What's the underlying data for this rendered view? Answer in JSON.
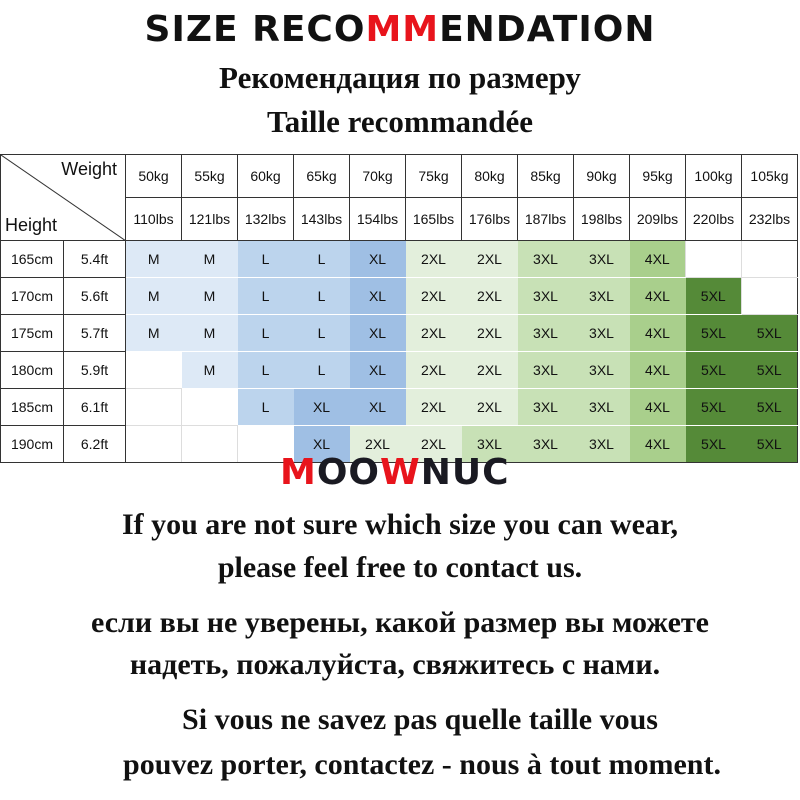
{
  "header": {
    "title_parts": [
      "SIZE RECO",
      "MM",
      "ENDATION"
    ],
    "subtitle_ru": "Рекомендация по размеру",
    "subtitle_fr": "Taille recommandée"
  },
  "colors": {
    "accent_red": "#e8141c",
    "M": "#dde9f6",
    "L": "#bcd4ed",
    "XL": "#9fbfe4",
    "2XL": "#e3efdc",
    "3XL": "#c8e1b6",
    "4XL": "#a9cf8c",
    "5XL": "#558a38"
  },
  "table": {
    "corner_weight": "Weight",
    "corner_height": "Height",
    "weights_kg": [
      "50kg",
      "55kg",
      "60kg",
      "65kg",
      "70kg",
      "75kg",
      "80kg",
      "85kg",
      "90kg",
      "95kg",
      "100kg",
      "105kg"
    ],
    "weights_lbs": [
      "110lbs",
      "121lbs",
      "132lbs",
      "143lbs",
      "154lbs",
      "165lbs",
      "176lbs",
      "187lbs",
      "198lbs",
      "209lbs",
      "220lbs",
      "232lbs"
    ],
    "rows": [
      {
        "cm": "165cm",
        "ft": "5.4ft",
        "sizes": [
          "M",
          "M",
          "L",
          "L",
          "XL",
          "2XL",
          "2XL",
          "3XL",
          "3XL",
          "4XL",
          "",
          ""
        ]
      },
      {
        "cm": "170cm",
        "ft": "5.6ft",
        "sizes": [
          "M",
          "M",
          "L",
          "L",
          "XL",
          "2XL",
          "2XL",
          "3XL",
          "3XL",
          "4XL",
          "5XL",
          ""
        ]
      },
      {
        "cm": "175cm",
        "ft": "5.7ft",
        "sizes": [
          "M",
          "M",
          "L",
          "L",
          "XL",
          "2XL",
          "2XL",
          "3XL",
          "3XL",
          "4XL",
          "5XL",
          "5XL"
        ]
      },
      {
        "cm": "180cm",
        "ft": "5.9ft",
        "sizes": [
          "",
          "M",
          "L",
          "L",
          "XL",
          "2XL",
          "2XL",
          "3XL",
          "3XL",
          "4XL",
          "5XL",
          "5XL"
        ]
      },
      {
        "cm": "185cm",
        "ft": "6.1ft",
        "sizes": [
          "",
          "",
          "L",
          "XL",
          "XL",
          "2XL",
          "2XL",
          "3XL",
          "3XL",
          "4XL",
          "5XL",
          "5XL"
        ]
      },
      {
        "cm": "190cm",
        "ft": "6.2ft",
        "sizes": [
          "",
          "",
          "",
          "XL",
          "2XL",
          "2XL",
          "3XL",
          "3XL",
          "3XL",
          "4XL",
          "5XL",
          "5XL"
        ]
      }
    ]
  },
  "logo": {
    "text": "MOOWNUC"
  },
  "messages": {
    "en_1": "If you are not sure which size you can wear,",
    "en_2": "please feel free to contact us.",
    "ru_1": "если вы не уверены, какой размер вы можете",
    "ru_2": "надеть, пожалуйста, свяжитесь с нами.",
    "fr_1": "Si vous ne savez pas quelle taille vous",
    "fr_2": "pouvez porter, contactez - nous à tout moment."
  }
}
